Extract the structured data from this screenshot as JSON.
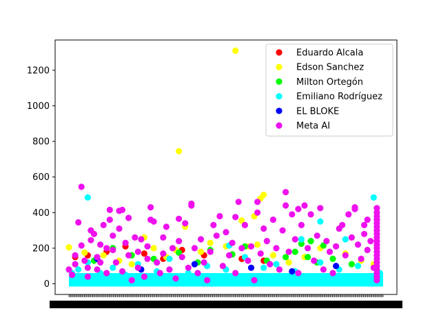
{
  "chart_data": {
    "type": "scatter",
    "title": "",
    "xlabel": "",
    "ylabel": "",
    "ylim": [
      -60,
      1370
    ],
    "y_ticks": [
      0,
      200,
      400,
      600,
      800,
      1000,
      1200
    ],
    "x_ticks": "dense unreadable categorical labels",
    "grid": false,
    "legend_position": "top-right",
    "series": [
      {
        "name": "Eduardo Alcala",
        "color": "#ff0000",
        "points": [
          [
            0.02,
            150
          ],
          [
            0.06,
            160
          ],
          [
            0.12,
            180
          ],
          [
            0.18,
            210
          ],
          [
            0.24,
            170
          ],
          [
            0.3,
            140
          ],
          [
            0.36,
            190
          ],
          [
            0.43,
            160
          ],
          [
            0.55,
            140
          ],
          [
            0.62,
            130
          ]
        ]
      },
      {
        "name": "Edson Sanchez",
        "color": "#ffff00",
        "points": [
          [
            0.0,
            205
          ],
          [
            0.05,
            175
          ],
          [
            0.11,
            160
          ],
          [
            0.16,
            130
          ],
          [
            0.2,
            110
          ],
          [
            0.24,
            260
          ],
          [
            0.27,
            200
          ],
          [
            0.31,
            150
          ],
          [
            0.34,
            190
          ],
          [
            0.35,
            745
          ],
          [
            0.37,
            320
          ],
          [
            0.42,
            180
          ],
          [
            0.45,
            230
          ],
          [
            0.5,
            210
          ],
          [
            0.53,
            1310
          ],
          [
            0.55,
            355
          ],
          [
            0.57,
            210
          ],
          [
            0.59,
            380
          ],
          [
            0.6,
            220
          ],
          [
            0.61,
            480
          ],
          [
            0.62,
            500
          ],
          [
            0.65,
            160
          ],
          [
            0.7,
            120
          ],
          [
            0.75,
            150
          ],
          [
            0.8,
            200
          ],
          [
            0.88,
            170
          ],
          [
            0.93,
            130
          ],
          [
            0.97,
            110
          ]
        ]
      },
      {
        "name": "Milton Ortegón",
        "color": "#00ff00",
        "points": [
          [
            0.08,
            130
          ],
          [
            0.14,
            200
          ],
          [
            0.2,
            160
          ],
          [
            0.27,
            140
          ],
          [
            0.35,
            175
          ],
          [
            0.41,
            120
          ],
          [
            0.45,
            190
          ],
          [
            0.52,
            165
          ],
          [
            0.56,
            210
          ],
          [
            0.63,
            130
          ],
          [
            0.69,
            150
          ],
          [
            0.72,
            180
          ],
          [
            0.74,
            225
          ],
          [
            0.76,
            150
          ],
          [
            0.77,
            240
          ],
          [
            0.79,
            120
          ],
          [
            0.81,
            215
          ],
          [
            0.84,
            140
          ],
          [
            0.9,
            110
          ]
        ]
      },
      {
        "name": "Emiliano Rodríguez",
        "color": "#00ffff",
        "points": [
          [
            0.01,
            60
          ],
          [
            0.03,
            80
          ],
          [
            0.05,
            40
          ],
          [
            0.06,
            120
          ],
          [
            0.06,
            485
          ],
          [
            0.1,
            60
          ],
          [
            0.14,
            90
          ],
          [
            0.18,
            50
          ],
          [
            0.22,
            110
          ],
          [
            0.28,
            70
          ],
          [
            0.32,
            140
          ],
          [
            0.38,
            60
          ],
          [
            0.44,
            100
          ],
          [
            0.5,
            80
          ],
          [
            0.51,
            215
          ],
          [
            0.56,
            150
          ],
          [
            0.62,
            90
          ],
          [
            0.66,
            110
          ],
          [
            0.72,
            70
          ],
          [
            0.74,
            250
          ],
          [
            0.8,
            120
          ],
          [
            0.8,
            350
          ],
          [
            0.86,
            80
          ],
          [
            0.88,
            250
          ],
          [
            0.92,
            100
          ],
          [
            0.97,
            485
          ],
          [
            0.99,
            60
          ]
        ]
      },
      {
        "name": "EL BLOKE",
        "color": "#0000ff",
        "points": [
          [
            0.09,
            140
          ],
          [
            0.23,
            80
          ],
          [
            0.4,
            110
          ],
          [
            0.58,
            90
          ],
          [
            0.71,
            70
          ],
          [
            0.85,
            100
          ]
        ]
      },
      {
        "name": "Meta AI",
        "color": "#ee11ee",
        "points": [
          [
            0.0,
            80
          ],
          [
            0.01,
            50
          ],
          [
            0.02,
            160
          ],
          [
            0.02,
            110
          ],
          [
            0.03,
            345
          ],
          [
            0.04,
            545
          ],
          [
            0.04,
            215
          ],
          [
            0.05,
            130
          ],
          [
            0.06,
            90
          ],
          [
            0.06,
            40
          ],
          [
            0.07,
            300
          ],
          [
            0.07,
            245
          ],
          [
            0.08,
            280
          ],
          [
            0.09,
            150
          ],
          [
            0.09,
            80
          ],
          [
            0.1,
            220
          ],
          [
            0.1,
            120
          ],
          [
            0.11,
            330
          ],
          [
            0.12,
            200
          ],
          [
            0.12,
            60
          ],
          [
            0.13,
            360
          ],
          [
            0.13,
            415
          ],
          [
            0.14,
            270
          ],
          [
            0.14,
            190
          ],
          [
            0.15,
            120
          ],
          [
            0.16,
            410
          ],
          [
            0.16,
            310
          ],
          [
            0.17,
            70
          ],
          [
            0.17,
            415
          ],
          [
            0.18,
            230
          ],
          [
            0.19,
            160
          ],
          [
            0.19,
            370
          ],
          [
            0.2,
            20
          ],
          [
            0.21,
            260
          ],
          [
            0.22,
            90
          ],
          [
            0.22,
            180
          ],
          [
            0.23,
            250
          ],
          [
            0.24,
            40
          ],
          [
            0.25,
            210
          ],
          [
            0.25,
            140
          ],
          [
            0.26,
            430
          ],
          [
            0.26,
            360
          ],
          [
            0.27,
            350
          ],
          [
            0.28,
            120
          ],
          [
            0.29,
            60
          ],
          [
            0.3,
            260
          ],
          [
            0.3,
            170
          ],
          [
            0.31,
            320
          ],
          [
            0.32,
            80
          ],
          [
            0.33,
            200
          ],
          [
            0.34,
            30
          ],
          [
            0.35,
            365
          ],
          [
            0.35,
            240
          ],
          [
            0.36,
            150
          ],
          [
            0.37,
            340
          ],
          [
            0.38,
            90
          ],
          [
            0.39,
            450
          ],
          [
            0.39,
            440
          ],
          [
            0.4,
            200
          ],
          [
            0.41,
            60
          ],
          [
            0.42,
            250
          ],
          [
            0.43,
            120
          ],
          [
            0.44,
            20
          ],
          [
            0.45,
            180
          ],
          [
            0.46,
            330
          ],
          [
            0.47,
            270
          ],
          [
            0.48,
            380
          ],
          [
            0.49,
            100
          ],
          [
            0.5,
            290
          ],
          [
            0.51,
            160
          ],
          [
            0.52,
            230
          ],
          [
            0.53,
            375
          ],
          [
            0.53,
            60
          ],
          [
            0.54,
            460
          ],
          [
            0.55,
            200
          ],
          [
            0.56,
            330
          ],
          [
            0.57,
            130
          ],
          [
            0.58,
            210
          ],
          [
            0.59,
            20
          ],
          [
            0.6,
            400
          ],
          [
            0.6,
            460
          ],
          [
            0.61,
            170
          ],
          [
            0.62,
            310
          ],
          [
            0.63,
            240
          ],
          [
            0.64,
            110
          ],
          [
            0.65,
            360
          ],
          [
            0.66,
            200
          ],
          [
            0.67,
            80
          ],
          [
            0.68,
            300
          ],
          [
            0.69,
            515
          ],
          [
            0.69,
            440
          ],
          [
            0.7,
            180
          ],
          [
            0.71,
            390
          ],
          [
            0.72,
            250
          ],
          [
            0.73,
            420
          ],
          [
            0.73,
            60
          ],
          [
            0.74,
            330
          ],
          [
            0.75,
            440
          ],
          [
            0.76,
            200
          ],
          [
            0.77,
            390
          ],
          [
            0.78,
            130
          ],
          [
            0.79,
            270
          ],
          [
            0.8,
            425
          ],
          [
            0.81,
            80
          ],
          [
            0.82,
            240
          ],
          [
            0.83,
            180
          ],
          [
            0.84,
            60
          ],
          [
            0.85,
            210
          ],
          [
            0.86,
            310
          ],
          [
            0.87,
            330
          ],
          [
            0.88,
            160
          ],
          [
            0.89,
            390
          ],
          [
            0.9,
            260
          ],
          [
            0.91,
            420
          ],
          [
            0.91,
            430
          ],
          [
            0.92,
            220
          ],
          [
            0.93,
            140
          ],
          [
            0.94,
            330
          ],
          [
            0.94,
            280
          ],
          [
            0.95,
            360
          ],
          [
            0.95,
            190
          ],
          [
            0.96,
            240
          ],
          [
            0.97,
            90
          ],
          [
            0.98,
            425
          ],
          [
            0.98,
            400
          ],
          [
            0.98,
            380
          ],
          [
            0.98,
            360
          ],
          [
            0.98,
            340
          ],
          [
            0.98,
            320
          ],
          [
            0.98,
            300
          ],
          [
            0.98,
            280
          ],
          [
            0.98,
            260
          ],
          [
            0.98,
            240
          ],
          [
            0.98,
            220
          ],
          [
            0.98,
            200
          ],
          [
            0.98,
            180
          ],
          [
            0.98,
            160
          ],
          [
            0.98,
            140
          ],
          [
            0.98,
            120
          ],
          [
            0.98,
            100
          ],
          [
            0.98,
            80
          ],
          [
            0.98,
            60
          ],
          [
            0.98,
            40
          ],
          [
            0.98,
            20
          ]
        ]
      }
    ]
  }
}
